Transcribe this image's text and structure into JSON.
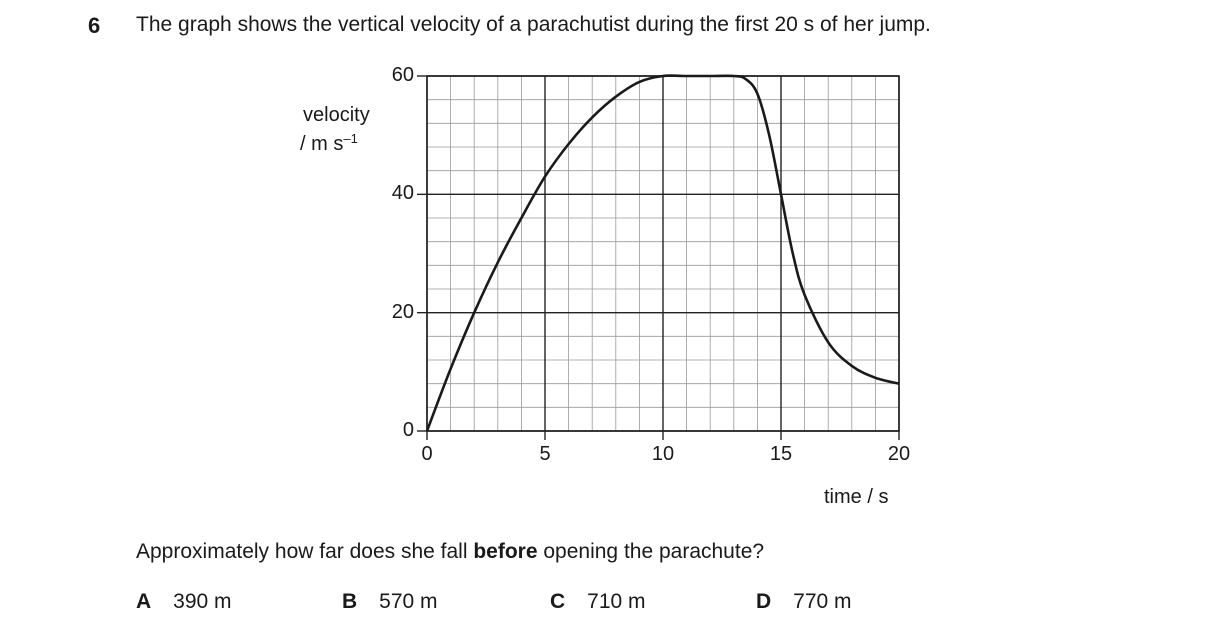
{
  "question": {
    "number": "6",
    "stem": "The graph shows the vertical velocity of a parachutist during the first 20 s of her jump.",
    "ask_pre": "Approximately how far does she fall ",
    "ask_bold": "before",
    "ask_post": " opening the parachute?",
    "options": [
      {
        "letter": "A",
        "text": "390 m"
      },
      {
        "letter": "B",
        "text": "570 m"
      },
      {
        "letter": "C",
        "text": "710 m"
      },
      {
        "letter": "D",
        "text": "770 m"
      }
    ]
  },
  "chart_data": {
    "type": "line",
    "title": "",
    "ylabel_line1": "velocity",
    "ylabel_unit": "/ m s",
    "ylabel_sup": "–1",
    "xlabel": "time / s",
    "xlim": [
      0,
      20
    ],
    "ylim": [
      0,
      60
    ],
    "x_ticks": [
      0,
      5,
      10,
      15,
      20
    ],
    "x_tick_labels": [
      "0",
      "5",
      "10",
      "15",
      "20"
    ],
    "y_ticks": [
      0,
      20,
      40,
      60
    ],
    "y_tick_labels": [
      "0",
      "20",
      "40",
      "60"
    ],
    "grid": true,
    "minor_grid": {
      "x_step": 1,
      "y_step": 4
    },
    "series": [
      {
        "x": [
          0,
          1,
          2,
          3,
          4,
          5,
          6,
          7,
          8,
          9,
          10,
          11,
          12,
          13,
          13.5,
          14,
          14.5,
          15,
          15.5,
          16,
          17,
          18,
          19,
          20
        ],
        "y": [
          0,
          10.5,
          20,
          28.5,
          36,
          43,
          48.5,
          53,
          56.5,
          59,
          60,
          60,
          60,
          60,
          59.5,
          57,
          50,
          40,
          30,
          23,
          15,
          11,
          9,
          8
        ]
      }
    ]
  }
}
